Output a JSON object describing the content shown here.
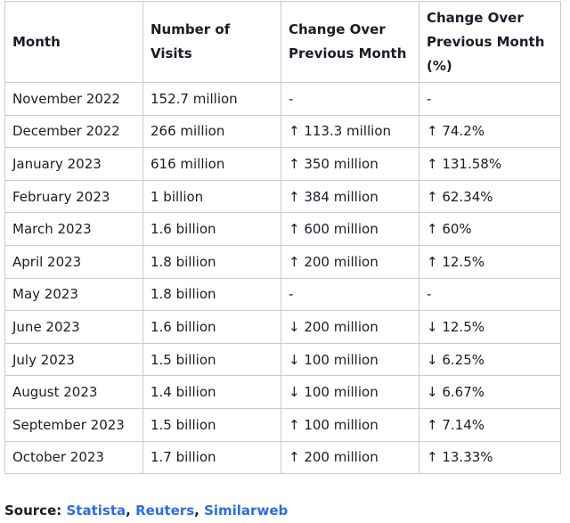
{
  "table": {
    "headers": [
      "Month",
      "Number of Visits",
      "Change Over Previous Month",
      "Change Over Previous Month (%)"
    ],
    "rows": [
      [
        "November 2022",
        "152.7 million",
        "-",
        "-"
      ],
      [
        "December 2022",
        "266 million",
        "↑ 113.3 million",
        "↑ 74.2%"
      ],
      [
        "January 2023",
        "616 million",
        "↑ 350 million",
        "↑ 131.58%"
      ],
      [
        "February 2023",
        "1 billion",
        "↑ 384 million",
        "↑ 62.34%"
      ],
      [
        "March 2023",
        "1.6 billion",
        "↑ 600 million",
        "↑ 60%"
      ],
      [
        "April 2023",
        "1.8 billion",
        "↑ 200 million",
        "↑ 12.5%"
      ],
      [
        "May 2023",
        "1.8 billion",
        "-",
        "-"
      ],
      [
        "June 2023",
        "1.6 billion",
        "↓ 200 million",
        "↓ 12.5%"
      ],
      [
        "July 2023",
        "1.5 billion",
        "↓ 100 million",
        "↓ 6.25%"
      ],
      [
        "August 2023",
        "1.4 billion",
        "↓ 100 million",
        "↓ 6.67%"
      ],
      [
        "September 2023",
        "1.5 billion",
        "↑ 100 million",
        "↑ 7.14%"
      ],
      [
        "October 2023",
        "1.7 billion",
        "↑ 200 million",
        "↑ 13.33%"
      ]
    ]
  },
  "source": {
    "label": "Source:",
    "links": [
      "Statista",
      "Reuters",
      "Similarweb"
    ],
    "separator": ",",
    "link_color": "#2f6dde"
  }
}
